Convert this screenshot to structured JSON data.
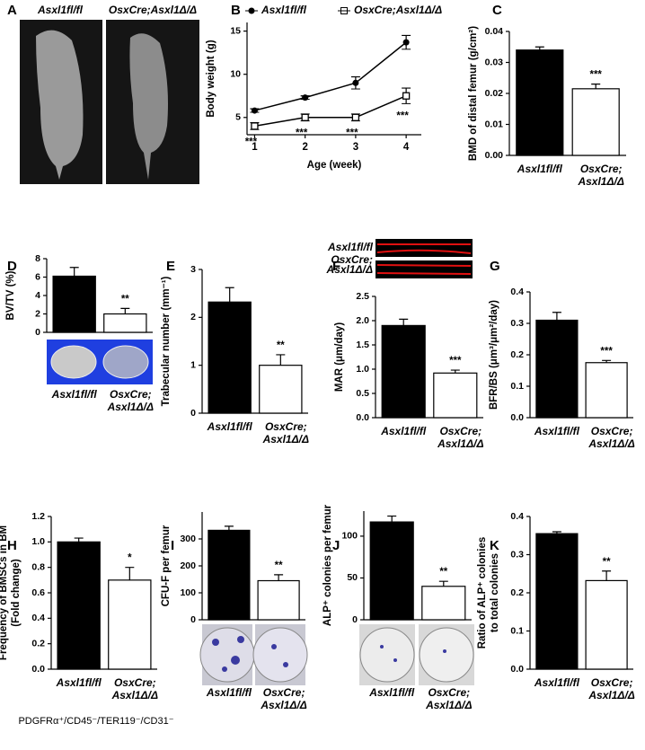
{
  "xray": {
    "panel": "A",
    "labels": [
      "Asxl1fl/fl",
      "OsxCre;Asxl1Δ/Δ"
    ]
  },
  "chart_data": [
    {
      "type": "line",
      "panel": "B",
      "xlabel": "Age (week)",
      "ylabel": [
        "Body weight (g)"
      ],
      "x": [
        1,
        2,
        3,
        4
      ],
      "xlim": [
        0.85,
        4.3
      ],
      "xticks": [
        1,
        2,
        3,
        4
      ],
      "ylim": [
        3,
        16
      ],
      "yticks": [
        5,
        10,
        15
      ],
      "series": [
        {
          "name": "Asxl1fl/fl",
          "color": "#000000",
          "marker": "circle",
          "values": [
            5.8,
            7.3,
            9.0,
            13.7
          ],
          "errors": [
            0.2,
            0.2,
            0.7,
            0.8
          ]
        },
        {
          "name": "OsxCre;Asxl1Δ/Δ",
          "color": "#000000",
          "marker": "square",
          "values": [
            4.0,
            5.0,
            5.0,
            7.5
          ],
          "errors": [
            0.4,
            0.4,
            0.4,
            0.9
          ]
        }
      ],
      "annotations": [
        "***",
        "***",
        "***",
        "***"
      ],
      "annotation_color": "#e8211f"
    },
    {
      "type": "bar",
      "panel": "C",
      "ylabel": [
        "BMD of distal femur (g/cm²)"
      ],
      "categories": [
        [
          "Asxl1fl/fl"
        ],
        [
          "OsxCre;",
          "Asxl1Δ/Δ"
        ]
      ],
      "values": [
        0.034,
        0.0215
      ],
      "errors": [
        0.001,
        0.0015
      ],
      "colors": [
        "#000000",
        "#ffffff"
      ],
      "ylim": [
        0,
        0.04
      ],
      "yticks": [
        {
          "value": 0,
          "label": "0.00"
        },
        0.01,
        0.02,
        0.03,
        0.04
      ],
      "significance": "***"
    },
    {
      "type": "bar",
      "panel": "D",
      "ylabel": [
        "BV/TV (%)"
      ],
      "categories": [
        [
          "Asxl1fl/fl"
        ],
        [
          "OsxCre;",
          "Asxl1Δ/Δ"
        ]
      ],
      "values": [
        6.1,
        2.0
      ],
      "errors": [
        0.95,
        0.6
      ],
      "colors": [
        "#000000",
        "#ffffff"
      ],
      "ylim": [
        0,
        8
      ],
      "yticks": [
        0,
        2,
        4,
        6,
        8
      ],
      "significance": "**"
    },
    {
      "type": "bar",
      "panel": "E",
      "ylabel": [
        "Trabecular number (mm⁻¹)"
      ],
      "categories": [
        [
          "Asxl1fl/fl"
        ],
        [
          "OsxCre;",
          "Asxl1Δ/Δ"
        ]
      ],
      "values": [
        2.32,
        1.0
      ],
      "errors": [
        0.3,
        0.22
      ],
      "colors": [
        "#000000",
        "#ffffff"
      ],
      "ylim": [
        0,
        3
      ],
      "yticks": [
        0,
        1,
        2,
        3
      ],
      "significance": "**"
    },
    {
      "type": "bar",
      "panel": "F",
      "ylabel": [
        "MAR (μm/day)"
      ],
      "image_labels": [
        [
          "Asxl1fl/fl"
        ],
        [
          "OsxCre;",
          "Asxl1Δ/Δ"
        ]
      ],
      "categories": [
        [
          "Asxl1fl/fl"
        ],
        [
          "OsxCre;",
          "Asxl1Δ/Δ"
        ]
      ],
      "values": [
        1.9,
        0.92
      ],
      "errors": [
        0.13,
        0.06
      ],
      "colors": [
        "#000000",
        "#ffffff"
      ],
      "ylim": [
        0,
        2.5
      ],
      "yticks": [
        {
          "value": 0,
          "label": "0.0"
        },
        0.5,
        {
          "value": 1,
          "label": "1.0"
        },
        1.5,
        {
          "value": 2,
          "label": "2.0"
        },
        2.5
      ],
      "significance": "***"
    },
    {
      "type": "bar",
      "panel": "G",
      "ylabel": [
        "BFR/BS (μm³/μm²/day)"
      ],
      "categories": [
        [
          "Asxl1fl/fl"
        ],
        [
          "OsxCre;",
          "Asxl1Δ/Δ"
        ]
      ],
      "values": [
        0.31,
        0.175
      ],
      "errors": [
        0.025,
        0.007
      ],
      "colors": [
        "#000000",
        "#ffffff"
      ],
      "ylim": [
        0,
        0.4
      ],
      "yticks": [
        {
          "value": 0,
          "label": "0.0"
        },
        0.1,
        0.2,
        0.3,
        0.4
      ],
      "significance": "***"
    },
    {
      "type": "bar",
      "panel": "H",
      "ylabel": [
        "Frequency of BMSCs in BM",
        "(Fold change)"
      ],
      "note": "PDGFRα⁺/CD45⁻/TER119⁻/CD31⁻",
      "categories": [
        [
          "Asxl1fl/fl"
        ],
        [
          "OsxCre;",
          "Asxl1Δ/Δ"
        ]
      ],
      "values": [
        1.0,
        0.7
      ],
      "errors": [
        0.03,
        0.1
      ],
      "colors": [
        "#000000",
        "#ffffff"
      ],
      "ylim": [
        0,
        1.2
      ],
      "yticks": [
        {
          "value": 0,
          "label": "0.0"
        },
        0.2,
        0.4,
        0.6,
        0.8,
        {
          "value": 1,
          "label": "1.0"
        },
        1.2
      ],
      "significance": "*"
    },
    {
      "type": "bar",
      "panel": "I",
      "ylabel": [
        "CFU-F per femur"
      ],
      "categories": [
        [
          "Asxl1fl/fl"
        ],
        [
          "OsxCre;",
          "Asxl1Δ/Δ"
        ]
      ],
      "values": [
        332,
        145
      ],
      "errors": [
        15,
        22
      ],
      "colors": [
        "#000000",
        "#ffffff"
      ],
      "ylim": [
        0,
        400
      ],
      "yticks": [
        0,
        100,
        200,
        300
      ],
      "significance": "**"
    },
    {
      "type": "bar",
      "panel": "J",
      "ylabel": [
        "ALP⁺ colonies per femur"
      ],
      "categories": [
        [
          "Asxl1fl/fl"
        ],
        [
          "OsxCre;",
          "Asxl1Δ/Δ"
        ]
      ],
      "values": [
        117,
        40
      ],
      "errors": [
        7,
        6
      ],
      "colors": [
        "#000000",
        "#ffffff"
      ],
      "ylim": [
        0,
        130
      ],
      "yticks": [
        0,
        50,
        100
      ],
      "significance": "**"
    },
    {
      "type": "bar",
      "panel": "K",
      "ylabel": [
        "Ratio of ALP⁺ colonies",
        "to total colonies"
      ],
      "categories": [
        [
          "Asxl1fl/fl"
        ],
        [
          "OsxCre;",
          "Asxl1Δ/Δ"
        ]
      ],
      "values": [
        0.355,
        0.232
      ],
      "errors": [
        0.005,
        0.025
      ],
      "colors": [
        "#000000",
        "#ffffff"
      ],
      "ylim": [
        0,
        0.4
      ],
      "yticks": [
        {
          "value": 0,
          "label": "0.0"
        },
        0.1,
        0.2,
        0.3,
        0.4
      ],
      "significance": "**"
    }
  ]
}
